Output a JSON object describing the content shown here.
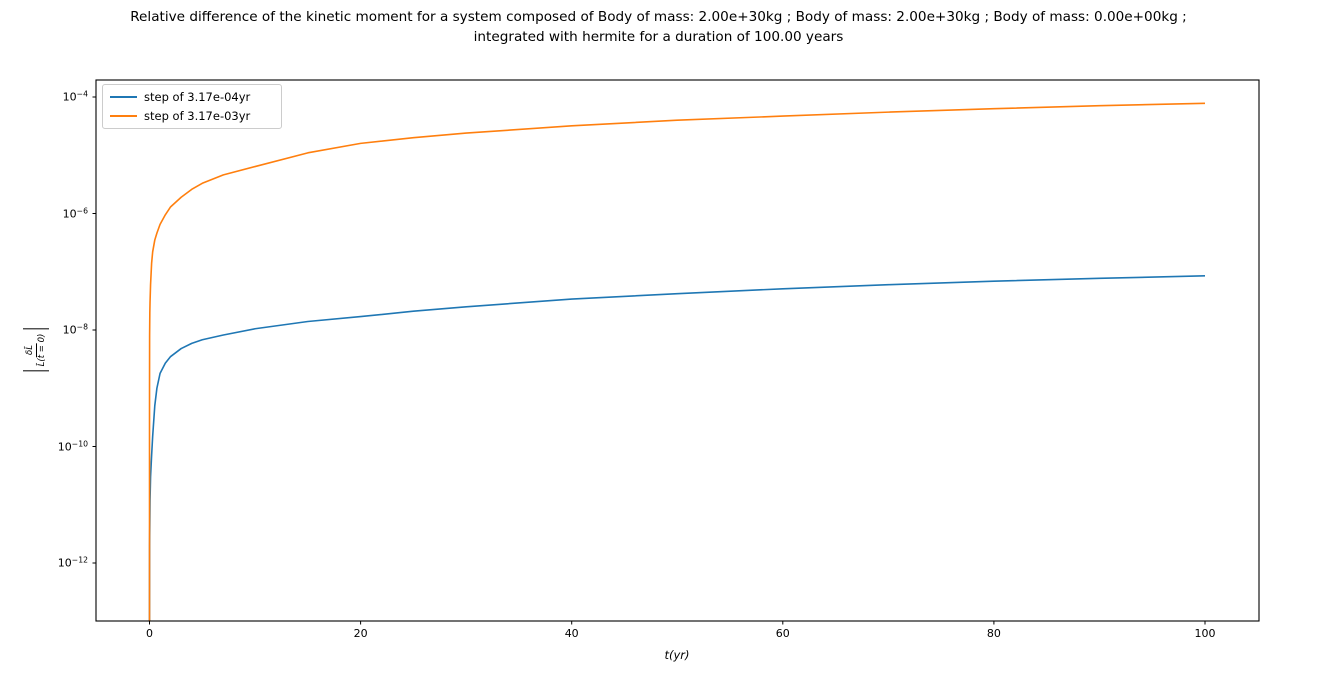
{
  "title": {
    "line1": "Relative difference of the kinetic moment for a system composed of Body of mass: 2.00e+30kg ; Body of mass: 2.00e+30kg ; Body of mass: 0.00e+00kg ;",
    "line2": "integrated with hermite for a duration of 100.00 years"
  },
  "axes": {
    "x": {
      "label": "t(yr)",
      "ticks": [
        0,
        20,
        40,
        60,
        80,
        100
      ]
    },
    "y": {
      "label_numerator": "δL̄",
      "label_denominator": "L̄(t = 0)",
      "tick_exponents": [
        -4,
        -6,
        -8,
        -10,
        -12
      ]
    }
  },
  "legend": {
    "items": [
      {
        "label": "step of 3.17e-04yr",
        "color": "#1f77b4"
      },
      {
        "label": "step of 3.17e-03yr",
        "color": "#ff7f0e"
      }
    ]
  },
  "chart_data": {
    "type": "line",
    "title": "Relative difference of the kinetic moment for a system composed of Body of mass: 2.00e+30kg ; Body of mass: 2.00e+30kg ; Body of mass: 0.00e+00kg ; integrated with hermite for a duration of 100.00 years",
    "xlabel": "t(yr)",
    "ylabel": "|δL̄/L̄(t=0)|",
    "xlim": [
      -5,
      105
    ],
    "ylim": [
      1e-13,
      0.000195
    ],
    "yscale": "log",
    "grid": false,
    "legend_position": "upper left",
    "series": [
      {
        "name": "step of 3.17e-04yr",
        "color": "#1f77b4",
        "points": [
          [
            0.0005,
            1e-13
          ],
          [
            0.01,
            2e-12
          ],
          [
            0.05,
            1.2e-11
          ],
          [
            0.1,
            3e-11
          ],
          [
            0.2,
            7e-11
          ],
          [
            0.3,
            1.5e-10
          ],
          [
            0.5,
            5e-10
          ],
          [
            0.7,
            1e-09
          ],
          [
            1,
            1.8e-09
          ],
          [
            1.5,
            2.7e-09
          ],
          [
            2,
            3.5e-09
          ],
          [
            3,
            4.8e-09
          ],
          [
            4,
            5.9e-09
          ],
          [
            5,
            6.8e-09
          ],
          [
            7,
            8.2e-09
          ],
          [
            10,
            1.05e-08
          ],
          [
            15,
            1.4e-08
          ],
          [
            20,
            1.7e-08
          ],
          [
            25,
            2.1e-08
          ],
          [
            30,
            2.5e-08
          ],
          [
            40,
            3.4e-08
          ],
          [
            50,
            4.2e-08
          ],
          [
            60,
            5.1e-08
          ],
          [
            70,
            6e-08
          ],
          [
            80,
            6.9e-08
          ],
          [
            90,
            7.7e-08
          ],
          [
            100,
            8.5e-08
          ]
        ]
      },
      {
        "name": "step of 3.17e-03yr",
        "color": "#ff7f0e",
        "points": [
          [
            0.0005,
            1e-13
          ],
          [
            0.001,
            1e-10
          ],
          [
            0.003,
            1e-09
          ],
          [
            0.01,
            8e-09
          ],
          [
            0.03,
            2e-08
          ],
          [
            0.05,
            3e-08
          ],
          [
            0.1,
            6e-08
          ],
          [
            0.2,
            1.4e-07
          ],
          [
            0.3,
            2.2e-07
          ],
          [
            0.5,
            3.5e-07
          ],
          [
            0.7,
            4.6e-07
          ],
          [
            1,
            6.5e-07
          ],
          [
            1.5,
            9.5e-07
          ],
          [
            2,
            1.3e-06
          ],
          [
            3,
            1.9e-06
          ],
          [
            4,
            2.6e-06
          ],
          [
            5,
            3.3e-06
          ],
          [
            7,
            4.6e-06
          ],
          [
            10,
            6.4e-06
          ],
          [
            15,
            1.1e-05
          ],
          [
            20,
            1.6e-05
          ],
          [
            25,
            2e-05
          ],
          [
            30,
            2.4e-05
          ],
          [
            40,
            3.2e-05
          ],
          [
            50,
            4e-05
          ],
          [
            60,
            4.7e-05
          ],
          [
            70,
            5.5e-05
          ],
          [
            80,
            6.3e-05
          ],
          [
            90,
            7.1e-05
          ],
          [
            100,
            7.8e-05
          ]
        ]
      }
    ]
  }
}
